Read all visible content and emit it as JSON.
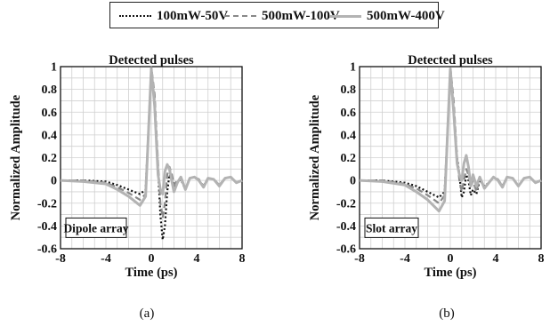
{
  "legend": [
    {
      "name": "100mW-50V",
      "color": "#111111",
      "dash": "2,2.5",
      "width": 2.2
    },
    {
      "name": "500mW-100V",
      "color": "#888888",
      "dash": "7,4",
      "width": 2.2
    },
    {
      "name": "500mW-400V",
      "color": "#b3b3b3",
      "dash": "",
      "width": 3
    }
  ],
  "chart_data": [
    {
      "type": "line",
      "title": "Detected pulses",
      "xlabel": "Time (ps)",
      "ylabel": "Normalized Amplitude",
      "xlim": [
        -8,
        8
      ],
      "ylim": [
        -0.6,
        1
      ],
      "xticks": [
        -8,
        -4,
        0,
        4,
        8
      ],
      "yticks": [
        -0.6,
        -0.4,
        -0.2,
        0,
        0.2,
        0.4,
        0.6,
        0.8,
        1
      ],
      "grid": true,
      "annotation": "Dipole array",
      "caption": "(a)",
      "series": [
        {
          "name": "100mW-50V",
          "x": [
            -8,
            -6,
            -4,
            -3,
            -2,
            -1,
            -0.5,
            0,
            0.3,
            0.6,
            0.8,
            1.0,
            1.2,
            1.4,
            1.6,
            1.8,
            2.0,
            2.3,
            2.6,
            3.0,
            3.4,
            3.8,
            4.2,
            4.6,
            5.0,
            5.5,
            6.0,
            6.5,
            7.0,
            7.5,
            8
          ],
          "y": [
            0,
            0,
            -0.01,
            -0.04,
            -0.08,
            -0.12,
            -0.08,
            0.95,
            0.7,
            0.1,
            -0.3,
            -0.52,
            -0.4,
            -0.1,
            0.05,
            0.02,
            -0.05,
            -0.02,
            0.01,
            -0.08,
            0.02,
            0.03,
            0.0,
            -0.05,
            0.02,
            0.01,
            -0.04,
            0.02,
            0.03,
            -0.02,
            0
          ]
        },
        {
          "name": "500mW-100V",
          "x": [
            -8,
            -6,
            -4,
            -3,
            -2,
            -1,
            -0.5,
            0,
            0.3,
            0.6,
            0.8,
            1.0,
            1.2,
            1.4,
            1.6,
            1.8,
            2.0,
            2.3,
            2.6,
            3.0,
            3.4,
            3.8,
            4.2,
            4.6,
            5.0,
            5.5,
            6.0,
            6.5,
            7.0,
            7.5,
            8
          ],
          "y": [
            0,
            0,
            -0.02,
            -0.06,
            -0.11,
            -0.17,
            -0.12,
            1.0,
            0.75,
            0.15,
            -0.2,
            -0.33,
            -0.2,
            0.05,
            0.12,
            0.06,
            -0.04,
            0.0,
            0.02,
            -0.07,
            0.02,
            0.03,
            0.01,
            -0.05,
            0.02,
            0.01,
            -0.04,
            0.02,
            0.03,
            -0.02,
            0
          ]
        },
        {
          "name": "500mW-400V",
          "x": [
            -8,
            -6,
            -4,
            -3,
            -2,
            -1,
            -0.5,
            0,
            0.3,
            0.6,
            0.8,
            1.0,
            1.2,
            1.4,
            1.6,
            1.8,
            2.0,
            2.3,
            2.6,
            3.0,
            3.4,
            3.8,
            4.2,
            4.6,
            5.0,
            5.5,
            6.0,
            6.5,
            7.0,
            7.5,
            8
          ],
          "y": [
            0,
            -0.01,
            -0.03,
            -0.08,
            -0.14,
            -0.22,
            -0.14,
            0.98,
            0.65,
            0.05,
            -0.08,
            -0.12,
            0.08,
            0.14,
            0.1,
            0.0,
            -0.1,
            -0.02,
            0.03,
            -0.08,
            0.02,
            0.03,
            0.0,
            -0.06,
            0.02,
            0.01,
            -0.05,
            0.02,
            0.03,
            -0.02,
            0
          ]
        }
      ]
    },
    {
      "type": "line",
      "title": "Detected pulses",
      "xlabel": "Time (ps)",
      "ylabel": "Normalized Amplitude",
      "xlim": [
        -8,
        8
      ],
      "ylim": [
        -0.6,
        1
      ],
      "xticks": [
        -8,
        -4,
        0,
        4,
        8
      ],
      "yticks": [
        -0.6,
        -0.4,
        -0.2,
        0,
        0.2,
        0.4,
        0.6,
        0.8,
        1
      ],
      "grid": true,
      "annotation": "Slot array",
      "caption": "(b)",
      "series": [
        {
          "name": "100mW-50V",
          "x": [
            -8,
            -6,
            -4,
            -3,
            -2,
            -1,
            -0.5,
            0,
            0.3,
            0.6,
            0.8,
            1.0,
            1.2,
            1.4,
            1.6,
            1.8,
            2.0,
            2.3,
            2.6,
            3.0,
            3.4,
            3.8,
            4.2,
            4.6,
            5.0,
            5.5,
            6.0,
            6.5,
            7.0,
            7.5,
            8
          ],
          "y": [
            0,
            0,
            -0.02,
            -0.05,
            -0.1,
            -0.15,
            -0.1,
            0.93,
            0.6,
            0.2,
            0.05,
            -0.15,
            -0.1,
            0.05,
            0.0,
            -0.13,
            -0.08,
            -0.12,
            0.0,
            -0.05,
            -0.02,
            0.03,
            0.0,
            -0.05,
            0.03,
            0.02,
            -0.05,
            0.02,
            0.03,
            -0.02,
            0
          ]
        },
        {
          "name": "500mW-100V",
          "x": [
            -8,
            -6,
            -4,
            -3,
            -2,
            -1,
            -0.5,
            0,
            0.3,
            0.6,
            0.8,
            1.0,
            1.2,
            1.4,
            1.6,
            1.8,
            2.0,
            2.3,
            2.6,
            3.0,
            3.4,
            3.8,
            4.2,
            4.6,
            5.0,
            5.5,
            6.0,
            6.5,
            7.0,
            7.5,
            8
          ],
          "y": [
            0,
            0,
            -0.03,
            -0.07,
            -0.13,
            -0.2,
            -0.13,
            1.0,
            0.7,
            0.2,
            0.0,
            -0.1,
            0.0,
            0.1,
            0.05,
            -0.05,
            0.0,
            -0.1,
            0.02,
            -0.06,
            -0.02,
            0.03,
            0.01,
            -0.05,
            0.03,
            0.02,
            -0.05,
            0.02,
            0.03,
            -0.02,
            0
          ]
        },
        {
          "name": "500mW-400V",
          "x": [
            -8,
            -6,
            -4,
            -3,
            -2,
            -1,
            -0.5,
            0,
            0.3,
            0.6,
            0.8,
            1.0,
            1.2,
            1.4,
            1.6,
            1.8,
            2.0,
            2.3,
            2.6,
            3.0,
            3.4,
            3.8,
            4.2,
            4.6,
            5.0,
            5.5,
            6.0,
            6.5,
            7.0,
            7.5,
            8
          ],
          "y": [
            0,
            -0.01,
            -0.04,
            -0.1,
            -0.17,
            -0.27,
            -0.18,
            0.98,
            0.6,
            0.15,
            0.05,
            0.0,
            0.15,
            0.22,
            0.12,
            -0.05,
            0.05,
            -0.05,
            0.03,
            -0.07,
            -0.02,
            0.03,
            0.0,
            -0.06,
            0.03,
            0.02,
            -0.05,
            0.02,
            0.03,
            -0.02,
            0
          ]
        }
      ]
    }
  ]
}
